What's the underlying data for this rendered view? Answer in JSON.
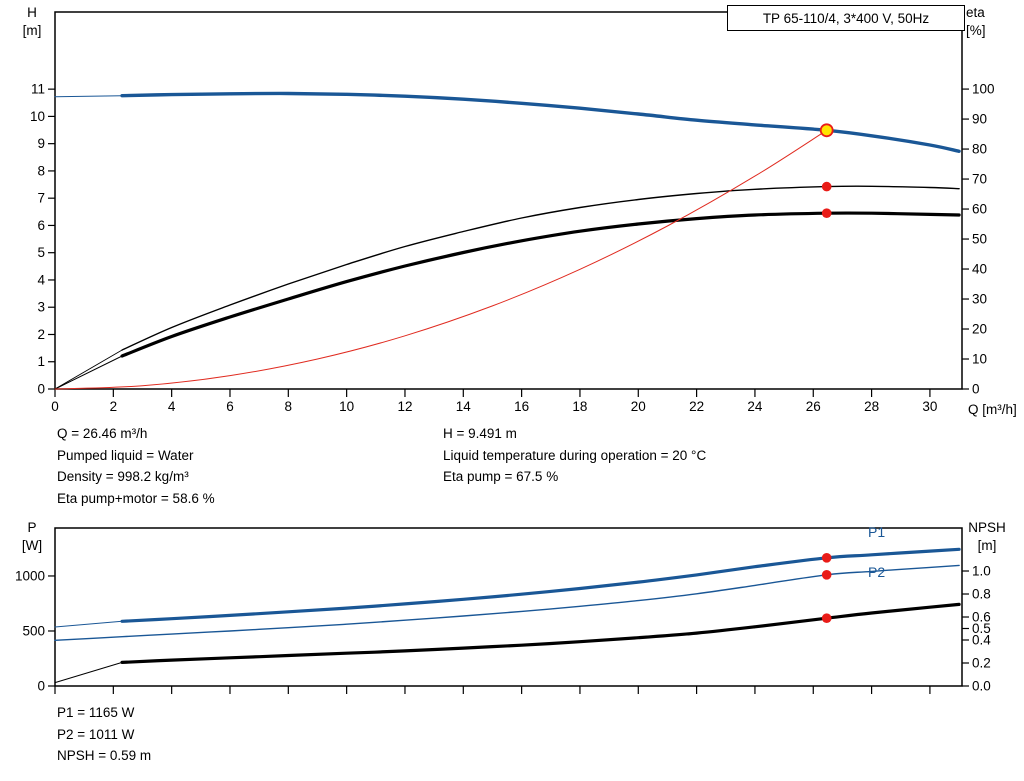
{
  "colors": {
    "curve_blue": "#1a5796",
    "curve_black": "#000000",
    "curve_red": "#e02b20",
    "marker_red": "#e91c18",
    "marker_yellow": "#ffe400",
    "axis": "#000000"
  },
  "annotations": {
    "col1": [
      "Q = 26.46 m³/h",
      "Pumped liquid = Water",
      "Density = 998.2 kg/m³",
      "Eta pump+motor = 58.6 %"
    ],
    "col2": [
      "H = 9.491 m",
      "Liquid temperature during operation = 20 °C",
      "Eta pump = 67.5 %"
    ],
    "bottom": [
      "P1 = 1165 W",
      "P2 = 1011 W",
      "NPSH = 0.59 m"
    ]
  },
  "chart_data": [
    {
      "id": "head-eta-chart",
      "type": "line",
      "title": "TP 65-110/4, 3*400 V, 50Hz",
      "x_axis": {
        "label": "Q [m³/h]",
        "range": [
          0,
          31.1
        ],
        "ticks": [
          [
            0,
            "0"
          ],
          [
            2,
            "2"
          ],
          [
            4,
            "4"
          ],
          [
            6,
            "6"
          ],
          [
            8,
            "8"
          ],
          [
            10,
            "10"
          ],
          [
            12,
            "12"
          ],
          [
            14,
            "14"
          ],
          [
            16,
            "16"
          ],
          [
            18,
            "18"
          ],
          [
            20,
            "20"
          ],
          [
            22,
            "22"
          ],
          [
            24,
            "24"
          ],
          [
            26,
            "26"
          ],
          [
            28,
            "28"
          ],
          [
            30,
            "30"
          ]
        ]
      },
      "y_left": {
        "label": "H",
        "unit": "[m]",
        "range": [
          0,
          13.83
        ],
        "ticks": [
          [
            0,
            "0"
          ],
          [
            1,
            "1"
          ],
          [
            2,
            "2"
          ],
          [
            3,
            "3"
          ],
          [
            4,
            "4"
          ],
          [
            5,
            "5"
          ],
          [
            6,
            "6"
          ],
          [
            7,
            "7"
          ],
          [
            8,
            "8"
          ],
          [
            9,
            "9"
          ],
          [
            10,
            "10"
          ],
          [
            11,
            "11"
          ]
        ]
      },
      "y_right": {
        "label": "eta",
        "unit": "[%]",
        "range": [
          0,
          125.7
        ],
        "ticks": [
          [
            0,
            "0"
          ],
          [
            10,
            "10"
          ],
          [
            20,
            "20"
          ],
          [
            30,
            "30"
          ],
          [
            40,
            "40"
          ],
          [
            50,
            "50"
          ],
          [
            60,
            "60"
          ],
          [
            70,
            "70"
          ],
          [
            80,
            "80"
          ],
          [
            90,
            "90"
          ],
          [
            100,
            "100"
          ]
        ]
      },
      "series": [
        {
          "name": "h-curve-lead",
          "axis": "left",
          "color": "#1a5796",
          "width": 1,
          "points": [
            [
              0,
              10.72
            ],
            [
              2.3,
              10.76
            ]
          ]
        },
        {
          "name": "h-curve",
          "axis": "left",
          "color": "#1a5796",
          "width": 3.4,
          "points": [
            [
              2.3,
              10.76
            ],
            [
              4,
              10.8
            ],
            [
              6,
              10.83
            ],
            [
              8,
              10.84
            ],
            [
              10,
              10.81
            ],
            [
              12,
              10.74
            ],
            [
              14,
              10.63
            ],
            [
              16,
              10.48
            ],
            [
              18,
              10.3
            ],
            [
              20,
              10.09
            ],
            [
              22,
              9.86
            ],
            [
              24,
              9.69
            ],
            [
              26.46,
              9.491
            ],
            [
              28,
              9.29
            ],
            [
              30,
              8.95
            ],
            [
              31,
              8.72
            ]
          ]
        },
        {
          "name": "eta-pump-lead",
          "axis": "right",
          "color": "#000000",
          "width": 0.9,
          "points": [
            [
              0,
              0
            ],
            [
              2.3,
              13
            ]
          ]
        },
        {
          "name": "eta-pump",
          "axis": "right",
          "color": "#000000",
          "width": 1.4,
          "points": [
            [
              2.3,
              13
            ],
            [
              4,
              20.5
            ],
            [
              6,
              28
            ],
            [
              8,
              35
            ],
            [
              10,
              41.5
            ],
            [
              12,
              47.5
            ],
            [
              14,
              52.5
            ],
            [
              16,
              57
            ],
            [
              18,
              60.5
            ],
            [
              20,
              63.2
            ],
            [
              22,
              65.2
            ],
            [
              24,
              66.6
            ],
            [
              26.46,
              67.5
            ],
            [
              28,
              67.6
            ],
            [
              30,
              67.2
            ],
            [
              31,
              66.8
            ]
          ]
        },
        {
          "name": "eta-pump-motor-lead",
          "axis": "right",
          "color": "#000000",
          "width": 1,
          "points": [
            [
              0,
              0
            ],
            [
              2.3,
              11
            ]
          ]
        },
        {
          "name": "eta-pump-motor",
          "axis": "right",
          "color": "#000000",
          "width": 3.2,
          "points": [
            [
              2.3,
              11
            ],
            [
              4,
              17.5
            ],
            [
              6,
              24
            ],
            [
              8,
              30
            ],
            [
              10,
              35.8
            ],
            [
              12,
              41
            ],
            [
              14,
              45.5
            ],
            [
              16,
              49.4
            ],
            [
              18,
              52.6
            ],
            [
              20,
              55
            ],
            [
              22,
              56.8
            ],
            [
              24,
              58
            ],
            [
              26.46,
              58.6
            ],
            [
              28,
              58.6
            ],
            [
              30,
              58.2
            ],
            [
              31,
              58
            ]
          ]
        },
        {
          "name": "system-curve",
          "axis": "left",
          "color": "#e02b20",
          "width": 1,
          "points": [
            [
              0,
              0
            ],
            [
              3,
              0.12
            ],
            [
              6,
              0.49
            ],
            [
              9,
              1.1
            ],
            [
              12,
              1.95
            ],
            [
              15,
              3.05
            ],
            [
              18,
              4.39
            ],
            [
              21,
              5.98
            ],
            [
              24,
              7.81
            ],
            [
              26.46,
              9.491
            ]
          ]
        }
      ],
      "markers": [
        {
          "name": "duty-point",
          "axis": "left",
          "x": 26.46,
          "y": 9.491,
          "style": "duty"
        },
        {
          "name": "eta-pump-point",
          "axis": "right",
          "x": 26.46,
          "y": 67.5,
          "style": "dot"
        },
        {
          "name": "eta-pump-motor-point",
          "axis": "right",
          "x": 26.46,
          "y": 58.6,
          "style": "dot"
        }
      ]
    },
    {
      "id": "power-npsh-chart",
      "type": "line",
      "title": "",
      "x_axis": {
        "label": "",
        "range": [
          0,
          31.1
        ],
        "ticks": [
          [
            0,
            ""
          ],
          [
            2,
            ""
          ],
          [
            4,
            ""
          ],
          [
            6,
            ""
          ],
          [
            8,
            ""
          ],
          [
            10,
            ""
          ],
          [
            12,
            ""
          ],
          [
            14,
            ""
          ],
          [
            16,
            ""
          ],
          [
            18,
            ""
          ],
          [
            20,
            ""
          ],
          [
            22,
            ""
          ],
          [
            24,
            ""
          ],
          [
            26,
            ""
          ],
          [
            28,
            ""
          ],
          [
            30,
            ""
          ]
        ]
      },
      "y_left": {
        "label": "P",
        "unit": "[W]",
        "range": [
          0,
          1436
        ],
        "ticks": [
          [
            0,
            "0"
          ],
          [
            500,
            "500"
          ],
          [
            1000,
            "1000"
          ]
        ]
      },
      "y_right": {
        "label": "NPSH",
        "unit": "[m]",
        "range": [
          0,
          1.374
        ],
        "ticks": [
          [
            0,
            "0.0"
          ],
          [
            0.2,
            "0.2"
          ],
          [
            0.4,
            "0.4"
          ],
          [
            0.5,
            "0.5"
          ],
          [
            0.6,
            "0.6"
          ],
          [
            0.8,
            "0.8"
          ],
          [
            1.0,
            "1.0"
          ]
        ]
      },
      "series": [
        {
          "name": "p1-lead",
          "axis": "left",
          "color": "#1a5796",
          "width": 1,
          "points": [
            [
              0,
              536
            ],
            [
              2.3,
              588
            ]
          ]
        },
        {
          "name": "p1-curve",
          "label": "P1",
          "axis": "left",
          "color": "#1a5796",
          "width": 3.2,
          "points": [
            [
              2.3,
              588
            ],
            [
              4,
              612
            ],
            [
              6,
              642
            ],
            [
              8,
              674
            ],
            [
              10,
              708
            ],
            [
              12,
              746
            ],
            [
              14,
              788
            ],
            [
              16,
              834
            ],
            [
              18,
              886
            ],
            [
              20,
              944
            ],
            [
              22,
              1010
            ],
            [
              24,
              1084
            ],
            [
              26.46,
              1165
            ],
            [
              28,
              1192
            ],
            [
              30,
              1226
            ],
            [
              31,
              1242
            ]
          ]
        },
        {
          "name": "p2-curve",
          "label": "P2",
          "axis": "left",
          "color": "#1a5796",
          "width": 1.4,
          "points": [
            [
              0,
              415
            ],
            [
              2.3,
              448
            ],
            [
              4,
              472
            ],
            [
              6,
              500
            ],
            [
              8,
              530
            ],
            [
              10,
              562
            ],
            [
              12,
              598
            ],
            [
              14,
              636
            ],
            [
              16,
              678
            ],
            [
              18,
              724
            ],
            [
              20,
              776
            ],
            [
              22,
              838
            ],
            [
              24,
              914
            ],
            [
              26.46,
              1011
            ],
            [
              28,
              1042
            ],
            [
              30,
              1078
            ],
            [
              31,
              1096
            ]
          ]
        },
        {
          "name": "npsh-lead",
          "axis": "right",
          "color": "#000000",
          "width": 1,
          "points": [
            [
              0,
              0.03
            ],
            [
              2.3,
              0.205
            ]
          ]
        },
        {
          "name": "npsh-curve",
          "axis": "right",
          "color": "#000000",
          "width": 3.2,
          "points": [
            [
              2.3,
              0.205
            ],
            [
              4,
              0.225
            ],
            [
              6,
              0.245
            ],
            [
              8,
              0.265
            ],
            [
              10,
              0.285
            ],
            [
              12,
              0.305
            ],
            [
              14,
              0.33
            ],
            [
              16,
              0.355
            ],
            [
              18,
              0.385
            ],
            [
              20,
              0.42
            ],
            [
              22,
              0.46
            ],
            [
              24,
              0.515
            ],
            [
              26.46,
              0.59
            ],
            [
              28,
              0.635
            ],
            [
              30,
              0.685
            ],
            [
              31,
              0.71
            ]
          ]
        }
      ],
      "markers": [
        {
          "name": "p1-point",
          "axis": "left",
          "x": 26.46,
          "y": 1165,
          "style": "dot"
        },
        {
          "name": "p2-point",
          "axis": "left",
          "x": 26.46,
          "y": 1011,
          "style": "dot"
        },
        {
          "name": "npsh-point",
          "axis": "right",
          "x": 26.46,
          "y": 0.59,
          "style": "dot"
        }
      ]
    }
  ]
}
